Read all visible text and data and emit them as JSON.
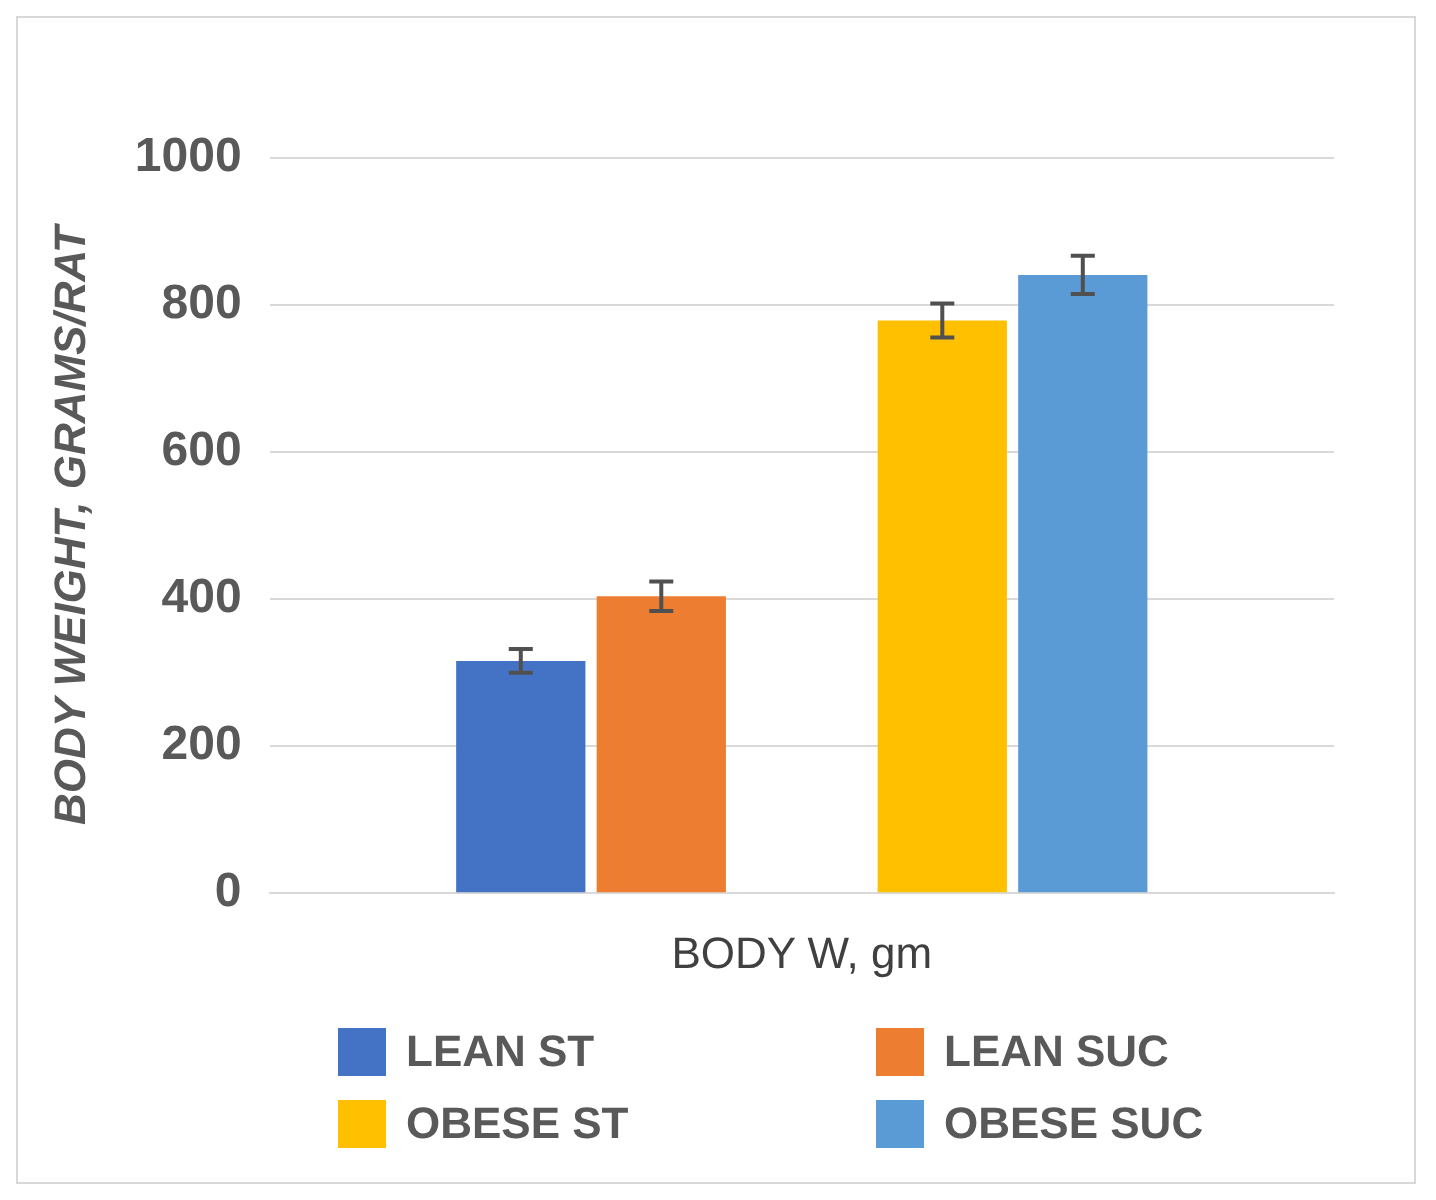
{
  "chart_data": {
    "type": "bar",
    "categories": [
      "BODY W, gm"
    ],
    "ylabel": "BODY WEIGHT, GRAMS/RAT",
    "series": [
      {
        "name": "LEAN ST",
        "color": "#4472c4",
        "values": [
          316
        ],
        "errors": [
          16
        ]
      },
      {
        "name": "LEAN SUC",
        "color": "#ed7d31",
        "values": [
          404
        ],
        "errors": [
          20
        ]
      },
      {
        "name": "OBESE ST",
        "color": "#ffc000",
        "values": [
          779
        ],
        "errors": [
          23
        ]
      },
      {
        "name": "OBESE SUC",
        "color": "#5b9bd5",
        "values": [
          841
        ],
        "errors": [
          26
        ]
      }
    ],
    "ylim": [
      0,
      1000
    ],
    "yticks": [
      0,
      200,
      400,
      600,
      800,
      1000
    ],
    "grid": "y",
    "legend": "bottom"
  }
}
